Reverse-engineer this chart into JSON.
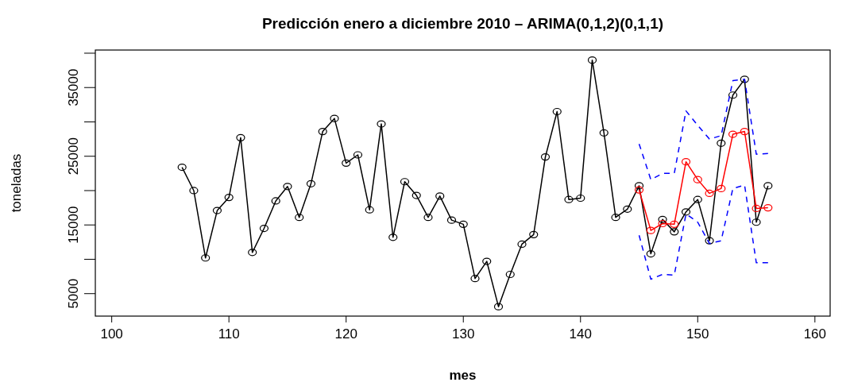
{
  "chart_data": {
    "type": "line",
    "title": "Predicción enero a diciembre 2010 – ARIMA(0,1,2)(0,1,1)",
    "xlabel": "mes",
    "ylabel": "toneladas",
    "xlim": [
      98.6,
      161.3
    ],
    "ylim": [
      1730,
      40460
    ],
    "xticks": [
      100,
      110,
      120,
      130,
      140,
      150,
      160
    ],
    "yticks": [
      5000,
      {
        "value": 10000,
        "label": null
      },
      15000,
      {
        "value": 20000,
        "label": null
      },
      25000,
      {
        "value": 30000,
        "label": null
      },
      35000,
      {
        "value": 40000,
        "label": null
      }
    ],
    "grid": false,
    "series": [
      {
        "color": "#000000",
        "marker": "circle",
        "line_style": "solid",
        "x": [
          106,
          107,
          108,
          109,
          110,
          111,
          112,
          113,
          114,
          115,
          116,
          117,
          118,
          119,
          120,
          121,
          122,
          123,
          124,
          125,
          126,
          127,
          128,
          129,
          130,
          131,
          132,
          133,
          134,
          135,
          136,
          137,
          138,
          139,
          140,
          141,
          142,
          143,
          144,
          145,
          146,
          147,
          148,
          149,
          150,
          151,
          152,
          153,
          154,
          155,
          156
        ],
        "values": [
          23400,
          20000,
          10200,
          17100,
          19000,
          27700,
          11000,
          14500,
          18500,
          20600,
          16100,
          21000,
          28600,
          30500,
          24000,
          25200,
          17200,
          29700,
          13200,
          21300,
          19300,
          16100,
          19200,
          15700,
          15100,
          7200,
          9700,
          3100,
          7800,
          12200,
          13600,
          24900,
          31500,
          18700,
          18900,
          39000,
          28400,
          16100,
          17300,
          20700,
          10800,
          15800,
          14000,
          16900,
          18700,
          12700,
          26900,
          33900,
          36200,
          15400,
          20700
        ]
      },
      {
        "color": "#ff0000",
        "marker": "circle",
        "line_style": "solid",
        "x": [
          145,
          146,
          147,
          148,
          149,
          150,
          151,
          152,
          153,
          154,
          155,
          156
        ],
        "values": [
          20100,
          14200,
          15200,
          15100,
          24200,
          21600,
          19600,
          20300,
          28200,
          28600,
          17400,
          17500
        ]
      },
      {
        "color": "#0000ff",
        "marker": "none",
        "line_style": "dashed",
        "x": [
          145,
          146,
          147,
          148,
          149,
          150,
          151,
          152,
          153,
          154,
          155,
          156
        ],
        "values": [
          26800,
          21600,
          22500,
          22500,
          31600,
          29500,
          27500,
          28000,
          36000,
          36200,
          25300,
          25400
        ]
      },
      {
        "color": "#0000ff",
        "marker": "none",
        "line_style": "dashed",
        "x": [
          145,
          146,
          147,
          148,
          149,
          150,
          151,
          152,
          153,
          154,
          155,
          156
        ],
        "values": [
          13500,
          7100,
          7800,
          7700,
          16600,
          15400,
          12300,
          12700,
          20300,
          20800,
          9500,
          9500
        ]
      }
    ]
  }
}
